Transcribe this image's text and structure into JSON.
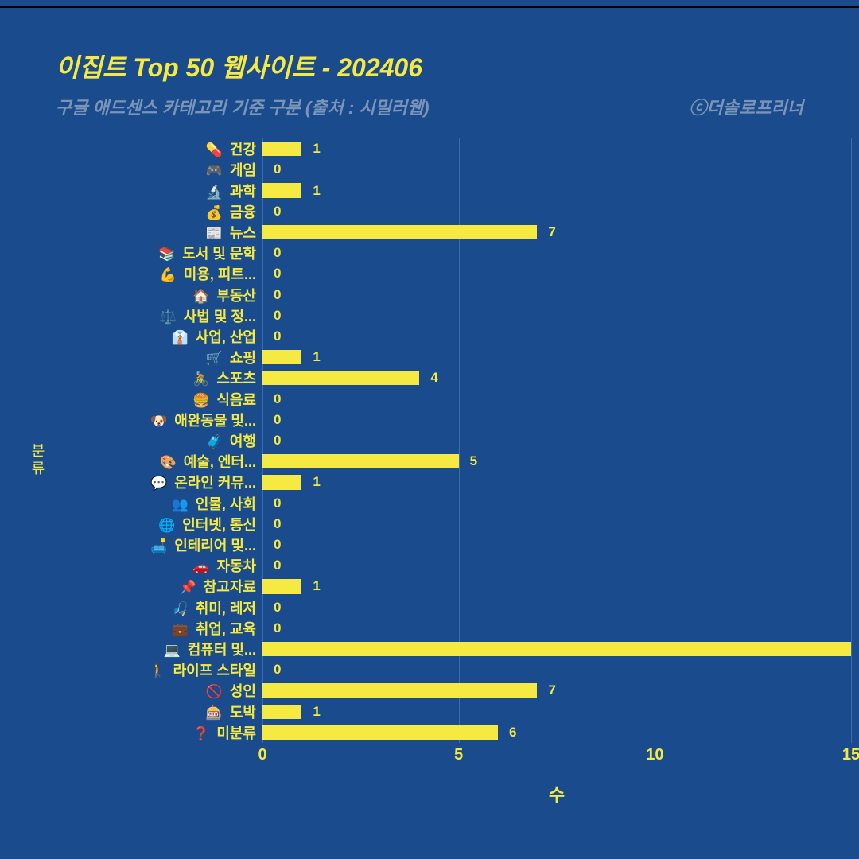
{
  "title": "이집트 Top 50 웹사이트 - 202406",
  "subtitle": "구글 애드센스 카테고리 기준 구분 (출처 : 시밀러웹)",
  "credit": "ⓒ더솔로프리너",
  "ylabel": "분류",
  "xlabel": "수",
  "chart": {
    "type": "bar-horizontal",
    "bar_color": "#f5e942",
    "label_color": "#f5e942",
    "background_color": "#1a4b8c",
    "grid_color": "#3a6bb0",
    "subtitle_color": "#7a95b8",
    "font_weight": "bold",
    "font_style_title": "italic",
    "title_fontsize": 32,
    "subtitle_fontsize": 22,
    "category_fontsize": 18,
    "value_fontsize": 17,
    "tick_fontsize": 20,
    "axis_label_fontsize": 22,
    "xlim": [
      0,
      15
    ],
    "xticks": [
      0,
      5,
      10,
      15
    ],
    "bar_height_ratio": 0.7,
    "categories": [
      {
        "emoji": "💊",
        "label": "건강",
        "value": 1
      },
      {
        "emoji": "🎮",
        "label": "게임",
        "value": 0
      },
      {
        "emoji": "🔬",
        "label": "과학",
        "value": 1
      },
      {
        "emoji": "💰",
        "label": "금융",
        "value": 0
      },
      {
        "emoji": "📰",
        "label": "뉴스",
        "value": 7
      },
      {
        "emoji": "📚",
        "label": "도서 및 문학",
        "value": 0
      },
      {
        "emoji": "💪",
        "label": "미용, 피트...",
        "value": 0
      },
      {
        "emoji": "🏠",
        "label": "부동산",
        "value": 0
      },
      {
        "emoji": "⚖️",
        "label": "사법 및 정...",
        "value": 0
      },
      {
        "emoji": "👔",
        "label": "사업, 산업",
        "value": 0
      },
      {
        "emoji": "🛒",
        "label": "쇼핑",
        "value": 1
      },
      {
        "emoji": "🚴",
        "label": "스포츠",
        "value": 4
      },
      {
        "emoji": "🍔",
        "label": "식음료",
        "value": 0
      },
      {
        "emoji": "🐶",
        "label": "애완동물 및...",
        "value": 0
      },
      {
        "emoji": "🧳",
        "label": "여행",
        "value": 0
      },
      {
        "emoji": "🎨",
        "label": "예술, 엔터...",
        "value": 5
      },
      {
        "emoji": "💬",
        "label": "온라인 커뮤...",
        "value": 1
      },
      {
        "emoji": "👥",
        "label": "인물, 사회",
        "value": 0
      },
      {
        "emoji": "🌐",
        "label": "인터넷, 통신",
        "value": 0
      },
      {
        "emoji": "🛋️",
        "label": "인테리어 및...",
        "value": 0
      },
      {
        "emoji": "🚗",
        "label": "자동차",
        "value": 0
      },
      {
        "emoji": "📌",
        "label": "참고자료",
        "value": 1
      },
      {
        "emoji": "🎣",
        "label": "취미, 레저",
        "value": 0
      },
      {
        "emoji": "💼",
        "label": "취업, 교육",
        "value": 0
      },
      {
        "emoji": "💻",
        "label": "컴퓨터 및...",
        "value": 15
      },
      {
        "emoji": "🚶",
        "label": "라이프 스타일",
        "value": 0
      },
      {
        "emoji": "🚫",
        "label": "성인",
        "value": 7
      },
      {
        "emoji": "🎰",
        "label": "도박",
        "value": 1
      },
      {
        "emoji": "❓",
        "label": "미분류",
        "value": 6
      }
    ]
  }
}
